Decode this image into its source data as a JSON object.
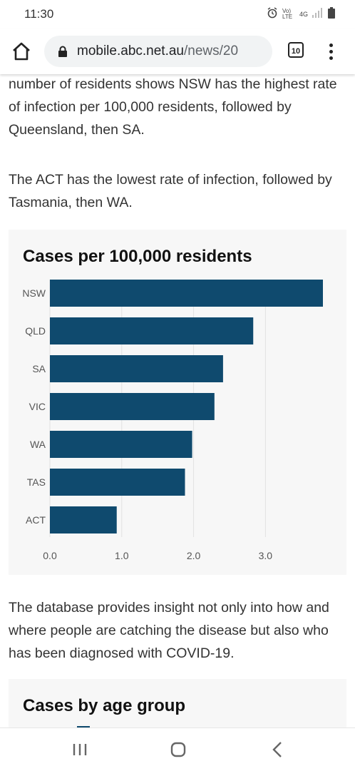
{
  "status": {
    "time": "11:30",
    "network": "4G",
    "volte": "Vo) LTE"
  },
  "browser": {
    "url_host": "mobile.abc.net.au",
    "url_path": "/news/20",
    "tab_count": "10"
  },
  "article": {
    "paragraphs": [
      "is taken into account. Adjusting the figures for the number of residents shows NSW has the highest rate of infection per 100,000 residents, followed by Queensland, then SA.",
      "The ACT has the lowest rate of infection, followed by Tasmania, then WA.",
      "The database provides insight not only into how and where people are catching the disease but also who has been diagnosed with COVID-19."
    ]
  },
  "chart_data": {
    "type": "bar",
    "orientation": "horizontal",
    "title": "Cases per 100,000 residents",
    "categories": [
      "NSW",
      "QLD",
      "SA",
      "VIC",
      "WA",
      "TAS",
      "ACT"
    ],
    "values": [
      3.8,
      2.83,
      2.41,
      2.29,
      1.98,
      1.88,
      0.93
    ],
    "xlim": [
      0,
      3.8
    ],
    "xticks": [
      "0.0",
      "1.0",
      "2.0",
      "3.0"
    ],
    "grid": true,
    "bar_color": "#0f4a6e"
  },
  "chart2": {
    "title": "Cases by age group"
  }
}
